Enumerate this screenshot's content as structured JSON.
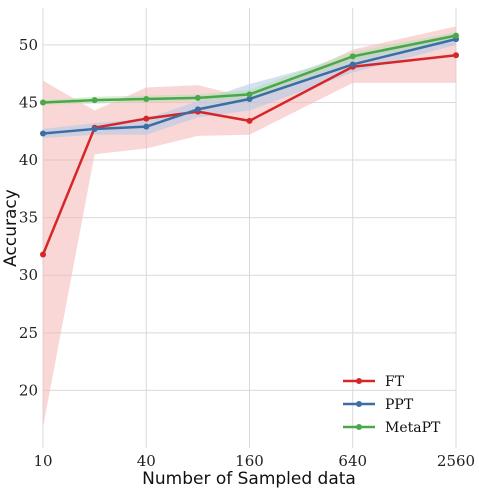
{
  "chart_data": {
    "type": "line",
    "title": "",
    "xlabel": "Number of Sampled data",
    "ylabel": "Accuracy",
    "x_scale": "log2",
    "x_ticks": [
      10,
      40,
      160,
      640,
      2560
    ],
    "x_tick_labels": [
      "10",
      "40",
      "160",
      "640",
      "2560"
    ],
    "xlim": [
      10,
      2560
    ],
    "y_ticks": [
      20,
      25,
      30,
      35,
      40,
      45,
      50
    ],
    "y_tick_labels": [
      "20",
      "25",
      "30",
      "35",
      "40",
      "45",
      "50"
    ],
    "ylim": [
      15,
      53.2
    ],
    "x": [
      10,
      20,
      40,
      80,
      160,
      640,
      2560
    ],
    "grid": true,
    "legend_position": "lower-right",
    "series": [
      {
        "name": "FT",
        "color": "#d62728",
        "band_color": "#f4b6b6",
        "values": [
          31.8,
          42.8,
          43.6,
          44.2,
          43.4,
          48.1,
          49.1
        ],
        "lower": [
          16.8,
          40.5,
          41.0,
          42.1,
          42.2,
          46.7,
          46.7
        ],
        "upper": [
          46.9,
          44.3,
          46.3,
          46.5,
          45.4,
          49.6,
          51.6
        ]
      },
      {
        "name": "PPT",
        "color": "#3a6ea5",
        "band_color": "#aec8e6",
        "values": [
          42.3,
          42.7,
          42.9,
          44.4,
          45.3,
          48.3,
          50.5
        ],
        "lower": [
          41.9,
          42.2,
          42.2,
          43.7,
          44.3,
          47.6,
          50.0
        ],
        "upper": [
          42.7,
          43.2,
          43.6,
          45.1,
          46.6,
          49.0,
          51.0
        ]
      },
      {
        "name": "MetaPT",
        "color": "#4aa84a",
        "band_color": "#b9deb3",
        "values": [
          45.0,
          45.2,
          45.3,
          45.4,
          45.7,
          49.0,
          50.8
        ],
        "lower": [
          44.8,
          44.9,
          45.0,
          45.1,
          45.3,
          48.6,
          50.5
        ],
        "upper": [
          45.2,
          45.5,
          45.6,
          45.7,
          46.1,
          49.4,
          51.1
        ]
      }
    ]
  }
}
